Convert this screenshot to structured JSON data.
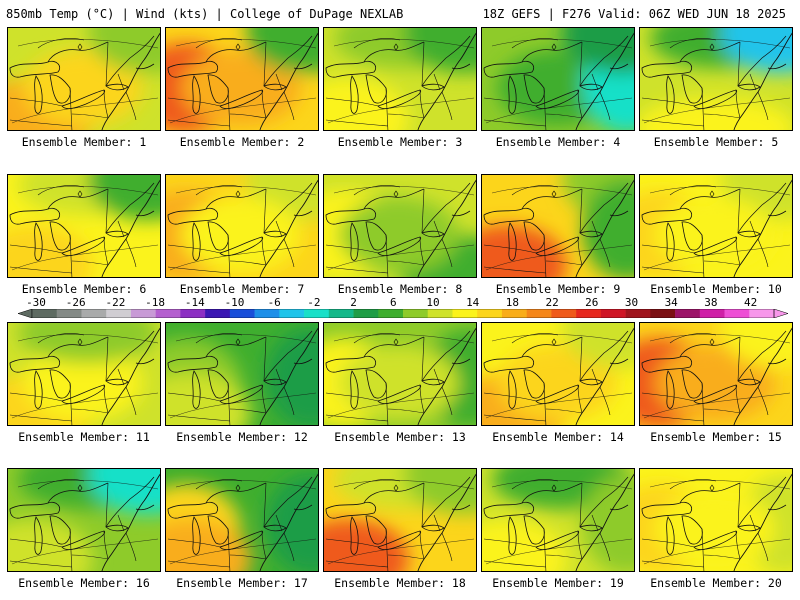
{
  "header": {
    "left": "850mb Temp (°C) | Wind (kts) | College of DuPage NEXLAB",
    "right": "18Z GEFS | F276 Valid: 06Z WED JUN 18 2025"
  },
  "colorbar": {
    "labels": [
      "-30",
      "-26",
      "-22",
      "-18",
      "-14",
      "-10",
      "-6",
      "-2",
      "2",
      "6",
      "10",
      "14",
      "18",
      "22",
      "26",
      "30",
      "34",
      "38",
      "42"
    ],
    "colors": [
      "#5e6b62",
      "#848a86",
      "#a9aaaa",
      "#d0cdd2",
      "#c89ad6",
      "#b45fcf",
      "#8c2fc3",
      "#3b17b3",
      "#1a4fd9",
      "#1e8fe8",
      "#20c4ea",
      "#19e0c8",
      "#14b889",
      "#1f9d46",
      "#3fae2f",
      "#8ecb2a",
      "#cfe22b",
      "#fbf31c",
      "#fcd51b",
      "#f9ad1a",
      "#f5861a",
      "#ef5a1b",
      "#e7281e",
      "#cf1525",
      "#a0141d",
      "#7b1014",
      "#9c1468",
      "#cf1fa7",
      "#ee4fd5",
      "#f797ea"
    ]
  },
  "panels": [
    {
      "label": "Ensemble Member: 1",
      "base": "#cfe22b",
      "blobs": [
        {
          "c": "#f9ad1a",
          "s": "sw"
        },
        {
          "c": "#fcd51b",
          "s": "c"
        },
        {
          "c": "#8ecb2a",
          "s": "ne"
        }
      ]
    },
    {
      "label": "Ensemble Member: 2",
      "base": "#fcd51b",
      "blobs": [
        {
          "c": "#ef5a1b",
          "s": "w"
        },
        {
          "c": "#f9ad1a",
          "s": "c"
        },
        {
          "c": "#3fae2f",
          "s": "ne"
        }
      ]
    },
    {
      "label": "Ensemble Member: 3",
      "base": "#cfe22b",
      "blobs": [
        {
          "c": "#fbf31c",
          "s": "sw"
        },
        {
          "c": "#8ecb2a",
          "s": "n"
        },
        {
          "c": "#3fae2f",
          "s": "ne"
        }
      ]
    },
    {
      "label": "Ensemble Member: 4",
      "base": "#8ecb2a",
      "blobs": [
        {
          "c": "#3fae2f",
          "s": "c"
        },
        {
          "c": "#19e0c8",
          "s": "e"
        },
        {
          "c": "#1f9d46",
          "s": "ne"
        }
      ]
    },
    {
      "label": "Ensemble Member: 5",
      "base": "#cfe22b",
      "blobs": [
        {
          "c": "#3fae2f",
          "s": "n"
        },
        {
          "c": "#20c4ea",
          "s": "ne"
        },
        {
          "c": "#fbf31c",
          "s": "s"
        }
      ]
    },
    {
      "label": "Ensemble Member: 6",
      "base": "#fbf31c",
      "blobs": [
        {
          "c": "#cfe22b",
          "s": "n"
        },
        {
          "c": "#3fae2f",
          "s": "ne"
        },
        {
          "c": "#fcd51b",
          "s": "sw"
        }
      ]
    },
    {
      "label": "Ensemble Member: 7",
      "base": "#fcd51b",
      "blobs": [
        {
          "c": "#f9ad1a",
          "s": "w"
        },
        {
          "c": "#cfe22b",
          "s": "ne"
        },
        {
          "c": "#fbf31c",
          "s": "c"
        }
      ]
    },
    {
      "label": "Ensemble Member: 8",
      "base": "#cfe22b",
      "blobs": [
        {
          "c": "#fbf31c",
          "s": "w"
        },
        {
          "c": "#3fae2f",
          "s": "se"
        },
        {
          "c": "#8ecb2a",
          "s": "c"
        }
      ]
    },
    {
      "label": "Ensemble Member: 9",
      "base": "#fcd51b",
      "blobs": [
        {
          "c": "#ef5a1b",
          "s": "sw"
        },
        {
          "c": "#8ecb2a",
          "s": "ne"
        },
        {
          "c": "#3fae2f",
          "s": "e"
        }
      ]
    },
    {
      "label": "Ensemble Member: 10",
      "base": "#fbf31c",
      "blobs": [
        {
          "c": "#fcd51b",
          "s": "w"
        },
        {
          "c": "#cfe22b",
          "s": "ne"
        },
        {
          "c": "#fbf31c",
          "s": "c"
        }
      ]
    },
    {
      "label": "Ensemble Member: 11",
      "base": "#cfe22b",
      "blobs": [
        {
          "c": "#fcd51b",
          "s": "sw"
        },
        {
          "c": "#fbf31c",
          "s": "c"
        },
        {
          "c": "#8ecb2a",
          "s": "n"
        }
      ]
    },
    {
      "label": "Ensemble Member: 12",
      "base": "#3fae2f",
      "blobs": [
        {
          "c": "#8ecb2a",
          "s": "w"
        },
        {
          "c": "#1f9d46",
          "s": "e"
        },
        {
          "c": "#cfe22b",
          "s": "sw"
        }
      ]
    },
    {
      "label": "Ensemble Member: 13",
      "base": "#8ecb2a",
      "blobs": [
        {
          "c": "#fbf31c",
          "s": "w"
        },
        {
          "c": "#3fae2f",
          "s": "e"
        },
        {
          "c": "#cfe22b",
          "s": "c"
        }
      ]
    },
    {
      "label": "Ensemble Member: 14",
      "base": "#fbf31c",
      "blobs": [
        {
          "c": "#f9ad1a",
          "s": "sw"
        },
        {
          "c": "#fcd51b",
          "s": "c"
        },
        {
          "c": "#cfe22b",
          "s": "ne"
        }
      ]
    },
    {
      "label": "Ensemble Member: 15",
      "base": "#fcd51b",
      "blobs": [
        {
          "c": "#ef5a1b",
          "s": "w"
        },
        {
          "c": "#f9ad1a",
          "s": "c"
        },
        {
          "c": "#fbf31c",
          "s": "ne"
        }
      ]
    },
    {
      "label": "Ensemble Member: 16",
      "base": "#8ecb2a",
      "blobs": [
        {
          "c": "#3fae2f",
          "s": "n"
        },
        {
          "c": "#19e0c8",
          "s": "ne"
        },
        {
          "c": "#cfe22b",
          "s": "sw"
        }
      ]
    },
    {
      "label": "Ensemble Member: 17",
      "base": "#3fae2f",
      "blobs": [
        {
          "c": "#fcd51b",
          "s": "w"
        },
        {
          "c": "#f9ad1a",
          "s": "sw"
        },
        {
          "c": "#1f9d46",
          "s": "e"
        }
      ]
    },
    {
      "label": "Ensemble Member: 18",
      "base": "#fcd51b",
      "blobs": [
        {
          "c": "#ef5a1b",
          "s": "sw"
        },
        {
          "c": "#cfe22b",
          "s": "n"
        },
        {
          "c": "#8ecb2a",
          "s": "ne"
        }
      ]
    },
    {
      "label": "Ensemble Member: 19",
      "base": "#cfe22b",
      "blobs": [
        {
          "c": "#fbf31c",
          "s": "sw"
        },
        {
          "c": "#3fae2f",
          "s": "n"
        },
        {
          "c": "#8ecb2a",
          "s": "e"
        }
      ]
    },
    {
      "label": "Ensemble Member: 20",
      "base": "#fbf31c",
      "blobs": [
        {
          "c": "#fcd51b",
          "s": "w"
        },
        {
          "c": "#cfe22b",
          "s": "e"
        },
        {
          "c": "#fbf31c",
          "s": "c"
        }
      ]
    }
  ]
}
